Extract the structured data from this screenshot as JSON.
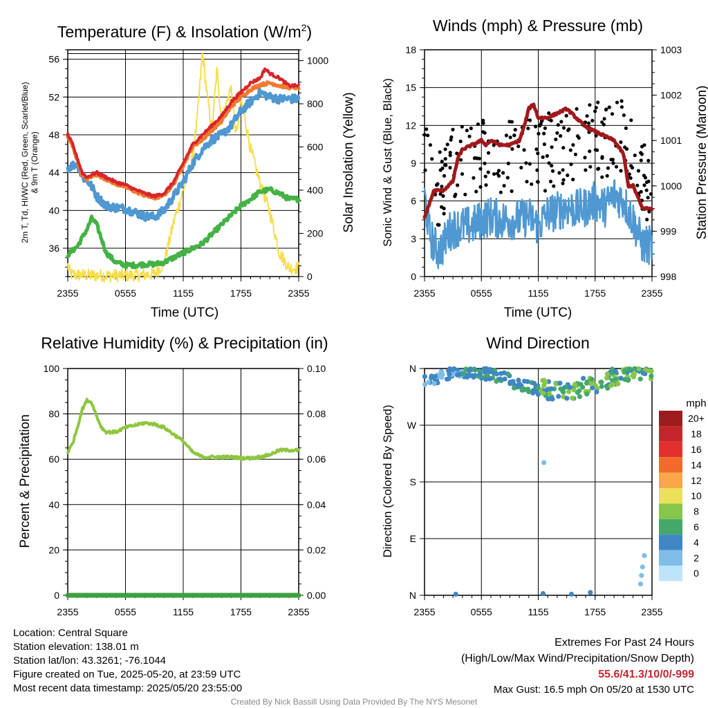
{
  "colors": {
    "temp": "#d7262b",
    "heat_index": "#f07a30",
    "dewpoint": "#44b244",
    "wind": "#4f98d2",
    "gust": "#000000",
    "pressure": "#a0191c",
    "insolation": "#f7de4c",
    "rh": "#8ec63f",
    "precip": "#3f9f3f",
    "extremes": "#c1272d",
    "credit": "#888888"
  },
  "chart_data": [
    {
      "type": "line",
      "title": "Temperature (F) & Insolation (W/m",
      "title_sup": "2",
      "title_close": ")",
      "xlabel": "Time (UTC)",
      "ylabel_left_line1": "2m T, Td, HI/WC (Red, Green, Scarlet/Blue)",
      "ylabel_left_line2": "& 9m T (Orange)",
      "ylabel_right": "Solar Insolation (Yellow)",
      "x_ticks": [
        "2355",
        "0555",
        "1155",
        "1755",
        "2355"
      ],
      "y_ticks_left": [
        36,
        40,
        44,
        48,
        52,
        56
      ],
      "y_ticks_right": [
        0,
        200,
        400,
        600,
        800,
        1000
      ],
      "ylim_left": [
        33,
        57
      ],
      "ylim_right": [
        0,
        1050
      ],
      "series": [
        {
          "key": "wind_chill",
          "points": [
            [
              0,
              44.5
            ],
            [
              1,
              45
            ],
            [
              1.5,
              43.5
            ],
            [
              2,
              43.2
            ],
            [
              2.5,
              42.5
            ],
            [
              3,
              41.5
            ],
            [
              4,
              40.5
            ],
            [
              5,
              40.3
            ],
            [
              6,
              40.2
            ],
            [
              7,
              39.8
            ],
            [
              8,
              39.4
            ],
            [
              9,
              39.3
            ],
            [
              10,
              40
            ],
            [
              11,
              41.5
            ],
            [
              12,
              43
            ],
            [
              13,
              45
            ],
            [
              14,
              46.5
            ],
            [
              15,
              47.5
            ],
            [
              16,
              48
            ],
            [
              17,
              49
            ],
            [
              18,
              50.5
            ],
            [
              19,
              51.5
            ],
            [
              20,
              52.5
            ],
            [
              21,
              52
            ],
            [
              22,
              51.8
            ],
            [
              23,
              51.8
            ]
          ]
        },
        {
          "key": "temperature",
          "points": [
            [
              0,
              48
            ],
            [
              0.5,
              47
            ],
            [
              1,
              45.5
            ],
            [
              1.5,
              44
            ],
            [
              2,
              43.5
            ],
            [
              2.5,
              43.8
            ],
            [
              3,
              44
            ],
            [
              4,
              43.5
            ],
            [
              5,
              43
            ],
            [
              6,
              42.7
            ],
            [
              7,
              42.2
            ],
            [
              8,
              41.8
            ],
            [
              9,
              41.5
            ],
            [
              10,
              41.8
            ],
            [
              11,
              43
            ],
            [
              12,
              45
            ],
            [
              13,
              47
            ],
            [
              14,
              48
            ],
            [
              15,
              49
            ],
            [
              16,
              50
            ],
            [
              17,
              51.5
            ],
            [
              18,
              52.5
            ],
            [
              19,
              53.5
            ],
            [
              20,
              54
            ],
            [
              20.5,
              55
            ],
            [
              21,
              54.5
            ],
            [
              22,
              54
            ],
            [
              23,
              53.2
            ]
          ]
        },
        {
          "key": "heat_index",
          "points": [
            [
              0,
              47.8
            ],
            [
              0.5,
              46.8
            ],
            [
              1,
              45.3
            ],
            [
              1.5,
              43.8
            ],
            [
              2,
              43.3
            ],
            [
              2.5,
              43.6
            ],
            [
              3,
              43.8
            ],
            [
              4,
              43.3
            ],
            [
              5,
              42.8
            ],
            [
              6,
              42.5
            ],
            [
              7,
              42
            ],
            [
              8,
              41.6
            ],
            [
              9,
              41.3
            ],
            [
              10,
              41.6
            ],
            [
              11,
              42.8
            ],
            [
              12,
              44.8
            ],
            [
              13,
              46.8
            ],
            [
              14,
              47.5
            ],
            [
              15,
              48.5
            ],
            [
              16,
              49.5
            ],
            [
              17,
              51
            ],
            [
              18,
              52
            ],
            [
              19,
              52.8
            ],
            [
              20,
              53.3
            ],
            [
              21,
              53.5
            ],
            [
              22,
              53.2
            ],
            [
              23,
              53
            ]
          ]
        },
        {
          "key": "dewpoint",
          "points": [
            [
              0,
              35.3
            ],
            [
              1,
              36.2
            ],
            [
              2,
              38
            ],
            [
              2.5,
              39.2
            ],
            [
              3,
              38.5
            ],
            [
              4,
              35.5
            ],
            [
              5,
              34.5
            ],
            [
              6,
              34.2
            ],
            [
              7,
              34.2
            ],
            [
              8,
              34.3
            ],
            [
              9,
              34.3
            ],
            [
              10,
              34.5
            ],
            [
              11,
              35
            ],
            [
              12,
              35.5
            ],
            [
              13,
              36
            ],
            [
              14,
              36.5
            ],
            [
              15,
              37.5
            ],
            [
              16,
              38.5
            ],
            [
              17,
              39.5
            ],
            [
              18,
              40.5
            ],
            [
              19,
              41.2
            ],
            [
              20,
              42
            ],
            [
              21,
              42.2
            ],
            [
              22,
              41.8
            ],
            [
              23,
              41.2
            ]
          ]
        },
        {
          "key": "insolation",
          "points": [
            [
              0,
              50
            ],
            [
              0.3,
              10
            ],
            [
              1,
              8
            ],
            [
              2,
              6
            ],
            [
              4,
              5
            ],
            [
              6,
              5
            ],
            [
              8,
              8
            ],
            [
              9,
              12
            ],
            [
              10,
              60
            ],
            [
              11,
              250
            ],
            [
              12,
              400
            ],
            [
              13,
              550
            ],
            [
              13.5,
              750
            ],
            [
              14,
              1040
            ],
            [
              14.5,
              830
            ],
            [
              15,
              680
            ],
            [
              15.5,
              960
            ],
            [
              16,
              720
            ],
            [
              17,
              880
            ],
            [
              17.5,
              650
            ],
            [
              18,
              820
            ],
            [
              18.5,
              710
            ],
            [
              19,
              590
            ],
            [
              20,
              430
            ],
            [
              21,
              300
            ],
            [
              22,
              110
            ],
            [
              23,
              40
            ]
          ]
        }
      ]
    },
    {
      "type": "line",
      "title": "Winds (mph) & Pressure (mb)",
      "xlabel": "Time (UTC)",
      "ylabel_left": "Sonic Wind & Gust (Blue, Black)",
      "ylabel_right": "Station Pressure (Maroon)",
      "x_ticks": [
        "2355",
        "0555",
        "1155",
        "1755",
        "2355"
      ],
      "y_ticks_left": [
        0,
        3,
        6,
        9,
        12,
        15,
        18
      ],
      "y_ticks_right": [
        998,
        999,
        1000,
        1001,
        1002,
        1003
      ],
      "ylim_left": [
        0,
        18
      ],
      "ylim_right": [
        998,
        1003
      ],
      "series": [
        {
          "key": "sonic_wind",
          "points": [
            [
              0,
              6.5
            ],
            [
              0.5,
              3.5
            ],
            [
              1,
              2.5
            ],
            [
              1.5,
              2
            ],
            [
              2,
              2.5
            ],
            [
              2.5,
              3.5
            ],
            [
              3,
              3.8
            ],
            [
              4,
              4
            ],
            [
              5,
              4
            ],
            [
              6,
              4.5
            ],
            [
              7,
              4.8
            ],
            [
              8,
              4.5
            ],
            [
              9,
              4.5
            ],
            [
              10,
              4.5
            ],
            [
              11,
              4.8
            ],
            [
              12,
              4
            ],
            [
              13,
              5
            ],
            [
              14,
              5.2
            ],
            [
              15,
              5.5
            ],
            [
              16,
              5.3
            ],
            [
              17,
              5.5
            ],
            [
              18,
              6
            ],
            [
              19,
              5.5
            ],
            [
              20,
              6.5
            ],
            [
              21,
              6
            ],
            [
              22,
              4.5
            ],
            [
              23,
              2.5
            ]
          ]
        },
        {
          "key": "pressure",
          "points": [
            [
              0,
              999.3
            ],
            [
              0.5,
              999.6
            ],
            [
              1,
              999.9
            ],
            [
              2,
              999.9
            ],
            [
              3,
              1000.1
            ],
            [
              3.5,
              1000.6
            ],
            [
              4,
              1000.8
            ],
            [
              5,
              1000.9
            ],
            [
              6,
              1001.0
            ],
            [
              6.5,
              1000.9
            ],
            [
              7,
              1001.0
            ],
            [
              8,
              1000.9
            ],
            [
              9,
              1000.9
            ],
            [
              10,
              1001.0
            ],
            [
              10.5,
              1001.3
            ],
            [
              11,
              1001.7
            ],
            [
              11.5,
              1001.8
            ],
            [
              12,
              1001.5
            ],
            [
              12.5,
              1001.5
            ],
            [
              13,
              1001.5
            ],
            [
              14,
              1001.6
            ],
            [
              15,
              1001.7
            ],
            [
              16,
              1001.5
            ],
            [
              17,
              1001.3
            ],
            [
              18,
              1001.2
            ],
            [
              19,
              1001.1
            ],
            [
              20,
              1001.0
            ],
            [
              21,
              1000.7
            ],
            [
              21.5,
              1000.0
            ],
            [
              22,
              1000.0
            ],
            [
              23,
              999.5
            ]
          ]
        }
      ]
    },
    {
      "type": "line",
      "title": "Relative Humidity (%) & Precipitation (in)",
      "ylabel_left": "Percent & Precipitation",
      "x_ticks": [
        "2355",
        "0555",
        "1155",
        "1755",
        "2355"
      ],
      "y_ticks_left": [
        0,
        20,
        40,
        60,
        80,
        100
      ],
      "y_ticks_right": [
        "0.00",
        "0.02",
        "0.04",
        "0.06",
        "0.08",
        "0.10"
      ],
      "ylim_left": [
        0,
        100
      ],
      "ylim_right": [
        0,
        0.1
      ],
      "series": [
        {
          "key": "relative_humidity",
          "points": [
            [
              0,
              63
            ],
            [
              0.5,
              67
            ],
            [
              1,
              74
            ],
            [
              1.5,
              82
            ],
            [
              2,
              86
            ],
            [
              2.5,
              85
            ],
            [
              3,
              79
            ],
            [
              3.5,
              74
            ],
            [
              4,
              72
            ],
            [
              5,
              72
            ],
            [
              6,
              74
            ],
            [
              7,
              75
            ],
            [
              8,
              76
            ],
            [
              9,
              75.5
            ],
            [
              10,
              74
            ],
            [
              11,
              71
            ],
            [
              12,
              68
            ],
            [
              13,
              63
            ],
            [
              14,
              61
            ],
            [
              15,
              61
            ],
            [
              16,
              61
            ],
            [
              17,
              61
            ],
            [
              18,
              60.5
            ],
            [
              19,
              60.5
            ],
            [
              20,
              61
            ],
            [
              21,
              62
            ],
            [
              22,
              64
            ],
            [
              23,
              64
            ]
          ]
        },
        {
          "key": "precipitation",
          "points": [
            [
              0,
              0
            ],
            [
              23,
              0
            ]
          ]
        }
      ]
    },
    {
      "type": "scatter",
      "title": "Wind Direction",
      "ylabel_left": "Direction (Colored By Speed)",
      "x_ticks": [
        "2355",
        "0555",
        "1155",
        "1755",
        "2355"
      ],
      "y_ticks_left": [
        "N",
        "E",
        "S",
        "W",
        "N"
      ],
      "legend_title": "mph",
      "legend": [
        {
          "label": "20+",
          "color": "#9d1c20"
        },
        {
          "label": "18",
          "color": "#c6262b"
        },
        {
          "label": "16",
          "color": "#e3302f"
        },
        {
          "label": "14",
          "color": "#f36a2b"
        },
        {
          "label": "12",
          "color": "#fba64a"
        },
        {
          "label": "10",
          "color": "#ece058"
        },
        {
          "label": "8",
          "color": "#86c64a"
        },
        {
          "label": "6",
          "color": "#45a76a"
        },
        {
          "label": "4",
          "color": "#3e87c4"
        },
        {
          "label": "2",
          "color": "#7fbde6"
        },
        {
          "label": "0",
          "color": "#bfe4f7"
        }
      ]
    }
  ],
  "info": {
    "location": "Location: Central Square",
    "elevation": "Station elevation: 138.01 m",
    "latlon": "Station lat/lon: 43.3261; -76.1044",
    "created": "Figure created on Tue, 2025-05-20, at 23:59 UTC",
    "recent": "Most recent data timestamp: 2025/05/20 23:55:00"
  },
  "extremes": {
    "title": "Extremes For Past 24 Hours",
    "subtitle": "(High/Low/Max Wind/Precipitation/Snow Depth)",
    "values": "55.6/41.3/10/0/-999",
    "max_gust": "Max Gust: 16.5 mph On 05/20 at 1530 UTC"
  },
  "credit": "Created By Nick Bassill Using Data Provided By The NYS Mesonet"
}
